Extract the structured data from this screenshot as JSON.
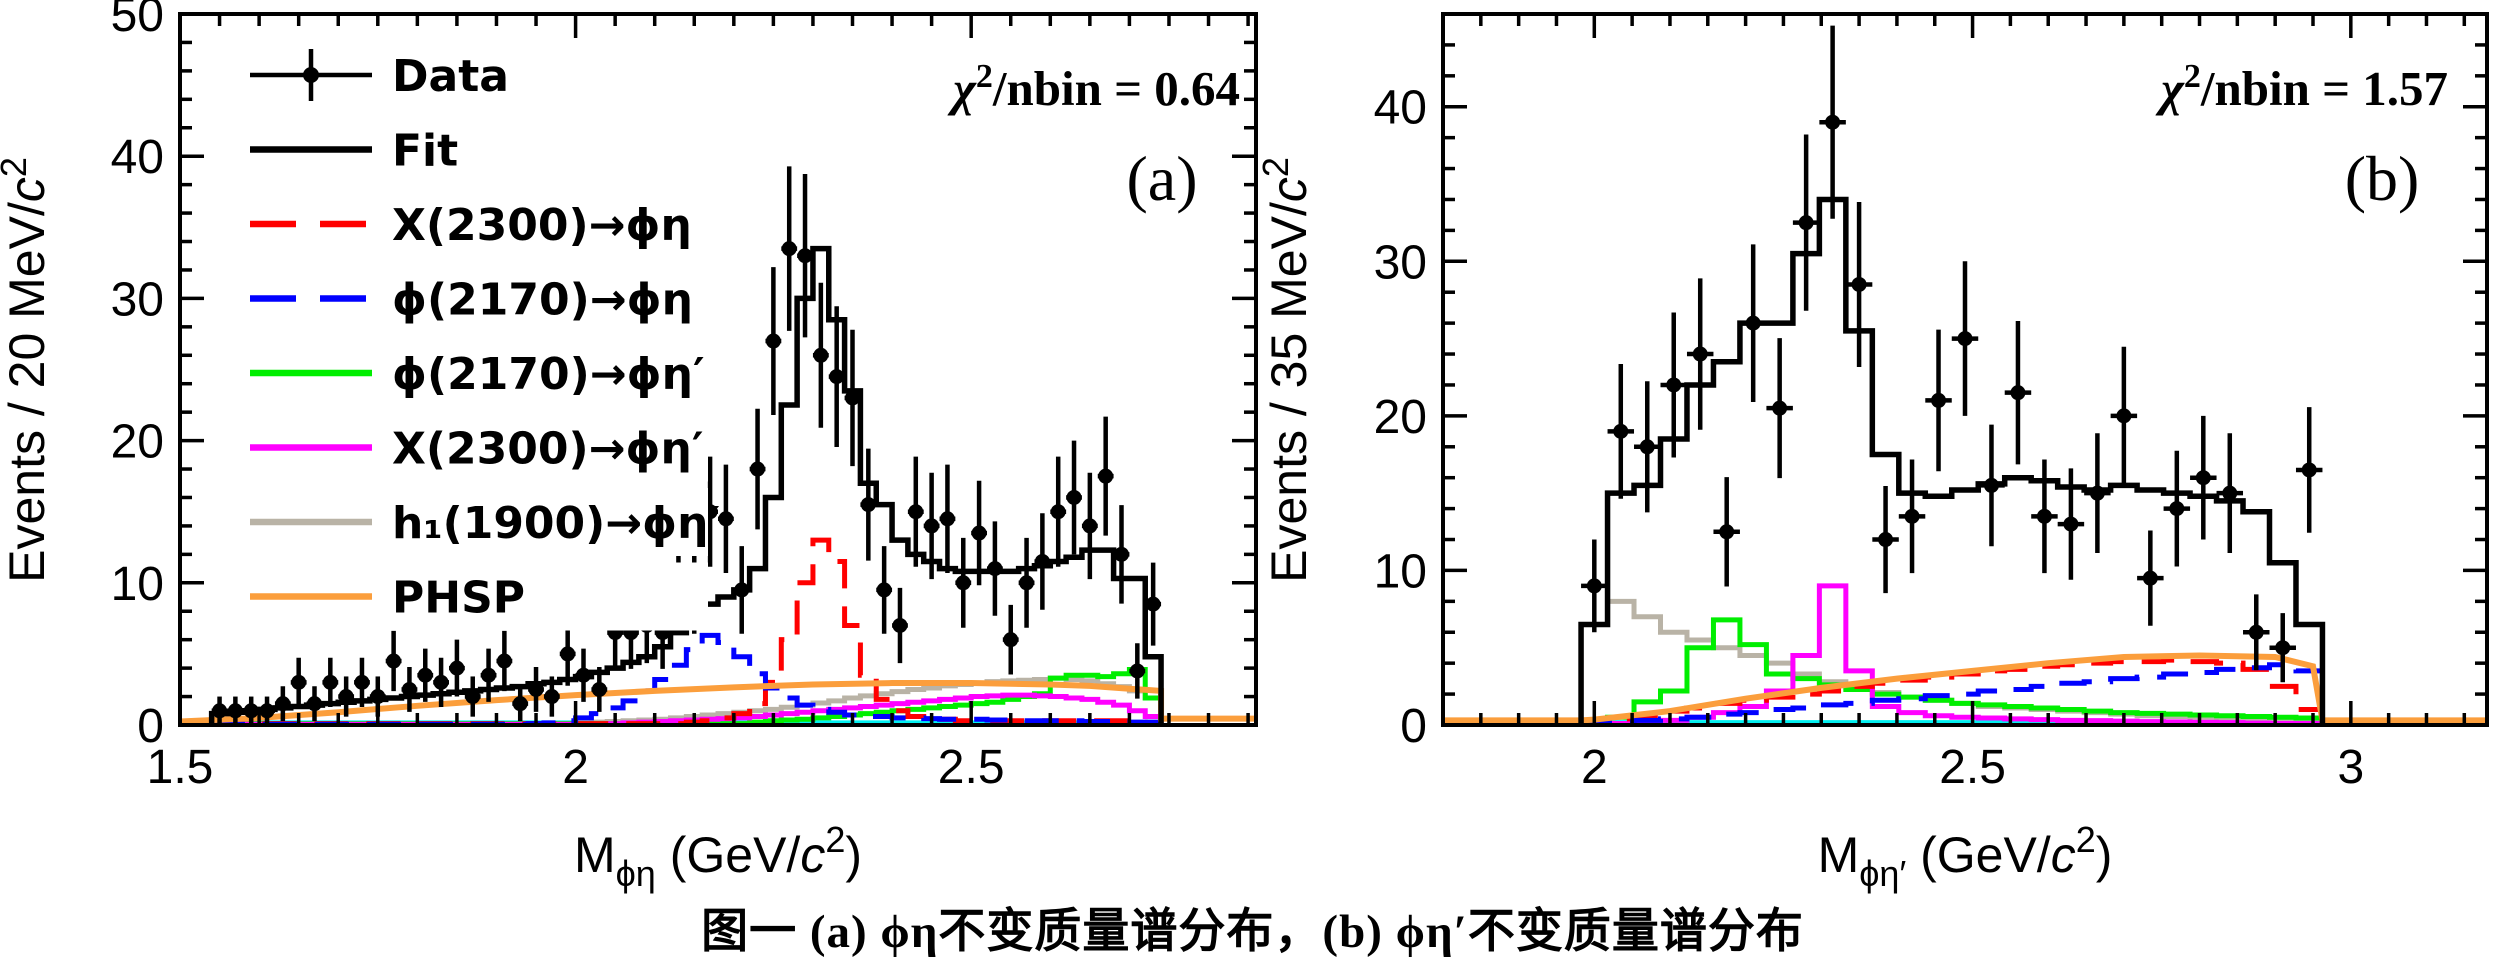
{
  "figure": {
    "caption": "图一  (a) ϕη不变质量谱分布，(b) ϕη′不变质量谱分布",
    "background": "#ffffff",
    "legend": [
      {
        "label": "Data",
        "type": "marker",
        "color": "#000000"
      },
      {
        "label": "Fit",
        "type": "line",
        "color": "#000000"
      },
      {
        "label": "X(2300)→ϕη",
        "type": "dash",
        "color": "#ff0000"
      },
      {
        "label": "ϕ(2170)→ϕη",
        "type": "dash",
        "color": "#0000ff"
      },
      {
        "label": "ϕ(2170)→ϕη′",
        "type": "line",
        "color": "#00ee00"
      },
      {
        "label": "X(2300)→ϕη′",
        "type": "line",
        "color": "#ff00ff"
      },
      {
        "label": "h₁(1900)→ϕη′",
        "type": "line",
        "color": "#b9b3a6"
      },
      {
        "label": "PHSP",
        "type": "line",
        "color": "#fb9e3c"
      }
    ]
  },
  "chart_data": [
    {
      "type": "bar",
      "subtype": "histogram-with-fit-components",
      "panel_label": "(a)",
      "chi2_label": "χ²/nbin",
      "chi2_value": "0.64",
      "ylabel": "Events / 20 MeV/c²",
      "xlabel_base": "M",
      "xlabel_sub": "ϕη",
      "xlabel_unit": "(GeV/c²)",
      "xlim": [
        1.5,
        2.86
      ],
      "ylim": [
        0,
        50
      ],
      "xticks": [
        {
          "v": 1.5,
          "label": "1.5"
        },
        {
          "v": 2,
          "label": "2"
        },
        {
          "v": 2.5,
          "label": "2.5"
        }
      ],
      "yticks": [
        0,
        10,
        20,
        30,
        40,
        50
      ],
      "minor_x": 0.05,
      "minor_y": 2,
      "legend_show": true,
      "bins": {
        "start": 1.55,
        "step": 0.02,
        "count": 60
      },
      "data": [
        1,
        1,
        1,
        1,
        1.5,
        3,
        1.5,
        3,
        2,
        3,
        2,
        4.5,
        2.5,
        3.5,
        3,
        4,
        2,
        3.5,
        4.5,
        1.5,
        2.5,
        2,
        5,
        3.5,
        2.5,
        6.5,
        6.5,
        7,
        6.5,
        13,
        9.5,
        15,
        14.5,
        9.5,
        18,
        27,
        33.5,
        33,
        26,
        24.5,
        23,
        15.5,
        9.5,
        7,
        15,
        14,
        14.5,
        10,
        13.5,
        11,
        6,
        10,
        11.5,
        15,
        16,
        14,
        17.5,
        12,
        3.8,
        8.5
      ],
      "fit": {
        "name": "Fit",
        "color": "#000000",
        "lw": 5.5,
        "values": [
          0.8,
          0.9,
          1.0,
          1.1,
          1.2,
          1.3,
          1.4,
          1.5,
          1.6,
          1.7,
          1.8,
          1.9,
          2.0,
          2.1,
          2.2,
          2.3,
          2.4,
          2.5,
          2.6,
          2.7,
          2.9,
          3.0,
          3.2,
          3.4,
          3.7,
          4.0,
          4.4,
          4.8,
          5.5,
          6.5,
          7.5,
          8.5,
          9.0,
          9.5,
          11.0,
          16.0,
          22.5,
          30.0,
          33.5,
          28.5,
          23.5,
          17.0,
          15.5,
          13.0,
          12.0,
          11.5,
          11.0,
          10.8,
          10.8,
          10.8,
          10.8,
          11.0,
          11.2,
          11.5,
          11.8,
          12.3,
          12.3,
          10.3,
          10.3,
          4.8
        ]
      },
      "series": [
        {
          "name": "cyan-baseline",
          "color": "#00f0f0",
          "style": "poly",
          "lw": 5,
          "points": [
            [
              1.56,
              0.15
            ],
            [
              2.74,
              0.15
            ]
          ]
        },
        {
          "name": "h1(1900)→ϕη′",
          "color": "#b9b3a6",
          "style": "step",
          "lw": 5,
          "values": [
            0.05,
            0.05,
            0.05,
            0.05,
            0.05,
            0.05,
            0.05,
            0.05,
            0.05,
            0.05,
            0.05,
            0.05,
            0.05,
            0.05,
            0.05,
            0.05,
            0.05,
            0.05,
            0.05,
            0.05,
            0.05,
            0.05,
            0.1,
            0.15,
            0.2,
            0.25,
            0.3,
            0.35,
            0.4,
            0.5,
            0.6,
            0.7,
            0.8,
            0.9,
            1.0,
            1.1,
            1.25,
            1.4,
            1.55,
            1.7,
            1.9,
            2.05,
            2.2,
            2.35,
            2.5,
            2.6,
            2.75,
            2.85,
            2.95,
            3.05,
            3.1,
            3.15,
            3.2,
            3.3,
            3.2,
            3.1,
            2.9,
            2.7,
            2.4,
            1.9
          ]
        },
        {
          "name": "ϕ(2170)→ϕη′",
          "color": "#00ee00",
          "style": "step",
          "lw": 5,
          "values": [
            0.1,
            0.1,
            0.1,
            0.1,
            0.1,
            0.1,
            0.1,
            0.1,
            0.1,
            0.1,
            0.1,
            0.1,
            0.1,
            0.1,
            0.1,
            0.1,
            0.1,
            0.1,
            0.1,
            0.1,
            0.1,
            0.1,
            0.1,
            0.1,
            0.1,
            0.1,
            0.1,
            0.1,
            0.1,
            0.1,
            0.1,
            0.1,
            0.1,
            0.1,
            0.2,
            0.3,
            0.35,
            0.4,
            0.5,
            0.6,
            0.7,
            0.8,
            0.9,
            1.0,
            1.1,
            1.2,
            1.3,
            1.4,
            1.5,
            1.6,
            1.8,
            2.0,
            2.2,
            3.3,
            3.5,
            3.5,
            3.4,
            3.6,
            3.9,
            1.9
          ]
        },
        {
          "name": "X(2300)→ϕη′",
          "color": "#ff00ff",
          "style": "step",
          "lw": 5,
          "values": [
            0.05,
            0.05,
            0.05,
            0.05,
            0.05,
            0.05,
            0.05,
            0.05,
            0.05,
            0.05,
            0.05,
            0.05,
            0.05,
            0.05,
            0.05,
            0.05,
            0.05,
            0.05,
            0.05,
            0.05,
            0.05,
            0.05,
            0.05,
            0.05,
            0.05,
            0.1,
            0.15,
            0.2,
            0.25,
            0.3,
            0.35,
            0.4,
            0.45,
            0.5,
            0.6,
            0.7,
            0.8,
            0.9,
            1.0,
            1.1,
            1.2,
            1.3,
            1.4,
            1.5,
            1.6,
            1.7,
            1.8,
            1.9,
            2.0,
            2.05,
            2.1,
            2.1,
            2.05,
            2.0,
            1.9,
            1.8,
            1.6,
            1.4,
            1.0,
            0.6
          ]
        },
        {
          "name": "X(2300)→ϕη",
          "color": "#ff0000",
          "style": "step",
          "lw": 5,
          "dash": "34,18",
          "values": [
            0.1,
            0.1,
            0.1,
            0.1,
            0.1,
            0.1,
            0.1,
            0.1,
            0.1,
            0.1,
            0.1,
            0.1,
            0.1,
            0.1,
            0.1,
            0.1,
            0.1,
            0.1,
            0.1,
            0.1,
            0.1,
            0.1,
            0.1,
            0.1,
            0.1,
            0.1,
            0.1,
            0.1,
            0.1,
            0.1,
            0.2,
            0.3,
            0.5,
            0.8,
            1.5,
            3.0,
            6.0,
            10.0,
            13.0,
            11.5,
            7.0,
            3.5,
            1.8,
            1.0,
            0.6,
            0.4,
            0.4,
            0.3,
            0.3,
            0.3,
            0.3,
            0.3,
            0.3,
            0.3,
            0.3,
            0.3,
            0.3,
            0.3,
            0.2,
            0.1
          ]
        },
        {
          "name": "ϕ(2170)→ϕη",
          "color": "#0000ff",
          "style": "step",
          "lw": 5,
          "dash": "34,18",
          "values": [
            0.05,
            0.05,
            0.05,
            0.05,
            0.05,
            0.05,
            0.05,
            0.05,
            0.05,
            0.05,
            0.05,
            0.05,
            0.05,
            0.05,
            0.05,
            0.05,
            0.05,
            0.05,
            0.05,
            0.05,
            0.1,
            0.15,
            0.3,
            0.5,
            0.8,
            1.2,
            1.7,
            2.4,
            3.2,
            4.2,
            5.3,
            6.3,
            5.8,
            4.8,
            3.6,
            2.6,
            1.9,
            1.4,
            1.1,
            0.9,
            0.7,
            0.6,
            0.6,
            0.5,
            0.5,
            0.45,
            0.4,
            0.4,
            0.4,
            0.35,
            0.35,
            0.3,
            0.3,
            0.3,
            0.3,
            0.25,
            0.25,
            0.2,
            0.2,
            0.2
          ]
        },
        {
          "name": "PHSP",
          "color": "#fb9e3c",
          "style": "poly",
          "lw": 6,
          "points": [
            [
              1.5,
              0.25
            ],
            [
              1.6,
              0.5
            ],
            [
              1.7,
              0.9
            ],
            [
              1.8,
              1.35
            ],
            [
              1.9,
              1.75
            ],
            [
              2.0,
              2.1
            ],
            [
              2.1,
              2.4
            ],
            [
              2.2,
              2.65
            ],
            [
              2.3,
              2.85
            ],
            [
              2.4,
              2.95
            ],
            [
              2.5,
              2.95
            ],
            [
              2.6,
              2.85
            ],
            [
              2.65,
              2.75
            ],
            [
              2.7,
              2.55
            ],
            [
              2.74,
              2.4
            ],
            [
              2.74,
              0.45
            ],
            [
              2.86,
              0.45
            ]
          ]
        }
      ]
    },
    {
      "type": "bar",
      "subtype": "histogram-with-fit-components",
      "panel_label": "(b)",
      "chi2_label": "χ²/nbin",
      "chi2_value": "1.57",
      "ylabel": "Events / 35 MeV/c²",
      "xlabel_base": "M",
      "xlabel_sub": "ϕη′",
      "xlabel_unit": "(GeV/c²)",
      "xlim": [
        1.8,
        3.18
      ],
      "ylim": [
        0,
        46
      ],
      "xticks": [
        {
          "v": 2,
          "label": "2"
        },
        {
          "v": 2.5,
          "label": "2.5"
        },
        {
          "v": 3,
          "label": "3"
        }
      ],
      "yticks": [
        0,
        10,
        20,
        30,
        40
      ],
      "minor_x": 0.05,
      "minor_y": 2,
      "legend_show": false,
      "bins": {
        "start": 2.0,
        "step": 0.035,
        "count": 28
      },
      "data": [
        9,
        19,
        18,
        22,
        24,
        12.5,
        26,
        20.5,
        32.5,
        39,
        28.5,
        12,
        13.5,
        21,
        25,
        15.5,
        21.5,
        13.5,
        13,
        15,
        20,
        9.5,
        14,
        16,
        15,
        6,
        5,
        16.5
      ],
      "fit": {
        "name": "Fit",
        "color": "#000000",
        "lw": 5.5,
        "values": [
          6.5,
          15,
          15.5,
          18.5,
          22,
          23.5,
          26,
          26,
          30.5,
          34,
          25.5,
          17.5,
          15,
          14.8,
          15.2,
          15.6,
          16,
          15.8,
          15.4,
          15.2,
          15.5,
          15.2,
          15,
          14.8,
          14.5,
          13.8,
          10.5,
          6.5
        ]
      },
      "series": [
        {
          "name": "cyan-baseline",
          "color": "#00f0f0",
          "style": "poly",
          "lw": 5,
          "points": [
            [
              1.9825,
              0.15
            ],
            [
              2.9625,
              0.15
            ]
          ]
        },
        {
          "name": "h1(1900)→ϕη′",
          "color": "#b9b3a6",
          "style": "step",
          "lw": 5,
          "values": [
            6.5,
            8,
            7,
            6,
            5.5,
            5,
            4.5,
            4,
            3.3,
            2.8,
            2.4,
            2.1,
            1.8,
            1.6,
            1.4,
            1.2,
            1.1,
            1.0,
            0.9,
            0.8,
            0.7,
            0.6,
            0.55,
            0.5,
            0.45,
            0.4,
            0.35,
            0.3
          ]
        },
        {
          "name": "ϕ(2170)→ϕη′",
          "color": "#00ee00",
          "style": "step",
          "lw": 5,
          "values": [
            0.2,
            0.5,
            1.5,
            2.2,
            5.0,
            6.8,
            5.2,
            3.3,
            3.0,
            2.6,
            2.3,
            2.0,
            1.8,
            1.6,
            1.4,
            1.3,
            1.2,
            1.1,
            1.0,
            0.9,
            0.8,
            0.75,
            0.7,
            0.65,
            0.6,
            0.55,
            0.5,
            0.45
          ]
        },
        {
          "name": "X(2300)→ϕη′",
          "color": "#ff00ff",
          "style": "step",
          "lw": 5,
          "values": [
            0.05,
            0.1,
            0.2,
            0.3,
            0.5,
            0.8,
            1.2,
            2.2,
            4.5,
            9.0,
            3.5,
            1.2,
            0.8,
            0.6,
            0.5,
            0.45,
            0.4,
            0.35,
            0.3,
            0.28,
            0.25,
            0.22,
            0.2,
            0.18,
            0.15,
            0.12,
            0.1,
            0.1
          ]
        },
        {
          "name": "X(2300)→ϕη",
          "color": "#ff0000",
          "style": "step",
          "lw": 5,
          "dash": "34,18",
          "values": [
            0.2,
            0.4,
            0.6,
            0.9,
            1.1,
            1.4,
            1.6,
            1.8,
            2.0,
            2.2,
            2.5,
            2.7,
            2.9,
            3.1,
            3.3,
            3.5,
            3.6,
            3.8,
            3.9,
            4.0,
            4.1,
            4.1,
            4.2,
            4.1,
            4.0,
            3.6,
            2.5,
            1.0
          ]
        },
        {
          "name": "ϕ(2170)→ϕη",
          "color": "#0000ff",
          "style": "step",
          "lw": 5,
          "dash": "34,18",
          "values": [
            0.1,
            0.2,
            0.3,
            0.4,
            0.5,
            0.7,
            0.8,
            1.0,
            1.1,
            1.3,
            1.4,
            1.6,
            1.7,
            1.9,
            2.0,
            2.2,
            2.3,
            2.5,
            2.7,
            2.8,
            3.0,
            3.1,
            3.3,
            3.4,
            3.6,
            3.7,
            3.9,
            3.5
          ]
        },
        {
          "name": "PHSP",
          "color": "#fb9e3c",
          "style": "poly",
          "lw": 6,
          "points": [
            [
              1.8,
              0.3
            ],
            [
              1.9825,
              0.3
            ],
            [
              2.0,
              0.35
            ],
            [
              2.1,
              0.9
            ],
            [
              2.2,
              1.7
            ],
            [
              2.3,
              2.4
            ],
            [
              2.4,
              3.0
            ],
            [
              2.5,
              3.5
            ],
            [
              2.6,
              4.0
            ],
            [
              2.7,
              4.4
            ],
            [
              2.8,
              4.5
            ],
            [
              2.9,
              4.4
            ],
            [
              2.95,
              3.8
            ],
            [
              2.9625,
              0.3
            ],
            [
              3.18,
              0.3
            ]
          ]
        }
      ]
    }
  ]
}
